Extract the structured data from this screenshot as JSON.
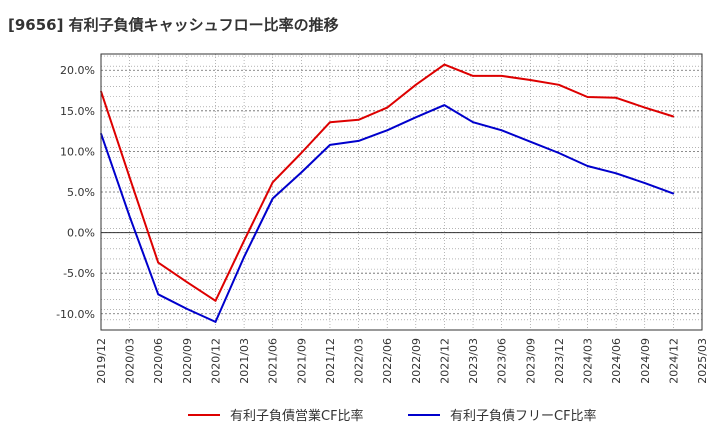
{
  "chart_data": {
    "type": "line",
    "title": "[9656]  有利子負債キャッシュフロー比率の推移",
    "x": [
      "2019/12",
      "2020/03",
      "2020/06",
      "2020/09",
      "2020/12",
      "2021/03",
      "2021/06",
      "2021/09",
      "2021/12",
      "2022/03",
      "2022/06",
      "2022/09",
      "2022/12",
      "2023/03",
      "2023/06",
      "2023/09",
      "2023/12",
      "2024/03",
      "2024/06",
      "2024/09",
      "2024/12",
      "2025/03"
    ],
    "series": [
      {
        "name": "有利子負債営業CF比率",
        "color": "#dd0000",
        "values": [
          17.4,
          6.8,
          -3.7,
          -6.1,
          -8.4,
          -1.0,
          6.2,
          9.8,
          13.6,
          13.9,
          15.4,
          18.2,
          20.7,
          19.3,
          19.3,
          18.8,
          18.2,
          16.7,
          16.6,
          15.4,
          14.3,
          null
        ]
      },
      {
        "name": "有利子負債フリーCF比率",
        "color": "#0000cc",
        "values": [
          12.2,
          2.0,
          -7.6,
          -9.4,
          -11.0,
          -3.0,
          4.2,
          7.4,
          10.8,
          11.3,
          12.6,
          14.2,
          15.7,
          13.6,
          12.6,
          11.2,
          9.8,
          8.2,
          7.3,
          6.1,
          4.8,
          null
        ]
      }
    ],
    "ylim": [
      -12,
      22
    ],
    "yticks": [
      -10,
      -5,
      0,
      5,
      10,
      15,
      20
    ],
    "ytick_labels": [
      "-10.0%",
      "-5.0%",
      "0.0%",
      "5.0%",
      "10.0%",
      "15.0%",
      "20.0%"
    ],
    "grid": true,
    "legend_position": "bottom",
    "xlabel": "",
    "ylabel": ""
  }
}
